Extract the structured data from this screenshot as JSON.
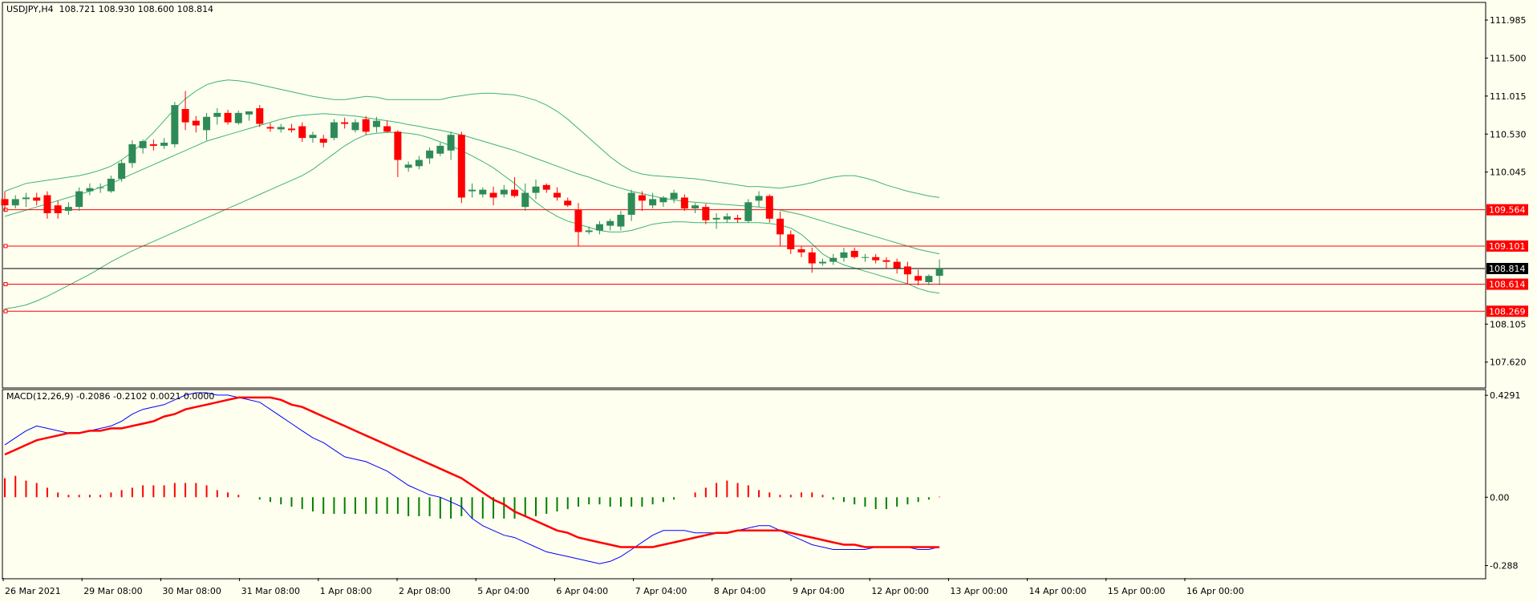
{
  "colors": {
    "background": "#fffff0",
    "frame": "#000000",
    "bull_candle": "#2e8b57",
    "bear_candle": "#ff0000",
    "bollinger": "#3cb371",
    "level_line": "#ff0000",
    "price_line": "#000000",
    "macd_line": "#0000ff",
    "signal_line": "#ff0000",
    "hist_positive": "#ff0000",
    "hist_negative": "#008000"
  },
  "price_panel": {
    "header": "USDJPY,H4  108.721 108.930 108.600 108.814",
    "yaxis_ticks": [
      "111.985",
      "111.500",
      "111.015",
      "110.530",
      "110.045",
      "108.105",
      "107.620"
    ],
    "ylim": [
      107.3,
      112.2
    ],
    "current_price_label": "108.814",
    "horizontal_levels": [
      "109.564",
      "109.101",
      "108.614",
      "108.269"
    ]
  },
  "macd_panel": {
    "header": "MACD(12,26,9) -0.2086 -0.2102 0.0021 0.0000",
    "yaxis_ticks": [
      "0.4291",
      "0.00",
      "-0.288"
    ],
    "ylim": [
      -0.34,
      0.45
    ]
  },
  "xaxis_labels": [
    "26 Mar 2021",
    "29 Mar 08:00",
    "30 Mar 08:00",
    "31 Mar 08:00",
    "1 Apr 08:00",
    "2 Apr 08:00",
    "5 Apr 04:00",
    "6 Apr 04:00",
    "7 Apr 04:00",
    "8 Apr 04:00",
    "9 Apr 04:00",
    "12 Apr 00:00",
    "13 Apr 00:00",
    "14 Apr 00:00",
    "15 Apr 00:00",
    "16 Apr 00:00"
  ],
  "chart_data": {
    "type": "candlestick",
    "symbol": "USDJPY",
    "timeframe": "H4",
    "ohlc": [
      [
        109.7,
        109.8,
        109.55,
        109.62
      ],
      [
        109.62,
        109.75,
        109.58,
        109.7
      ],
      [
        109.7,
        109.78,
        109.6,
        109.72
      ],
      [
        109.72,
        109.78,
        109.62,
        109.68
      ],
      [
        109.75,
        109.8,
        109.45,
        109.52
      ],
      [
        109.62,
        109.68,
        109.45,
        109.52
      ],
      [
        109.55,
        109.66,
        109.5,
        109.6
      ],
      [
        109.6,
        109.85,
        109.55,
        109.8
      ],
      [
        109.8,
        109.9,
        109.75,
        109.84
      ],
      [
        109.84,
        109.9,
        109.78,
        109.85
      ],
      [
        109.8,
        110.0,
        109.78,
        109.96
      ],
      [
        109.96,
        110.2,
        109.92,
        110.16
      ],
      [
        110.16,
        110.45,
        110.1,
        110.4
      ],
      [
        110.35,
        110.46,
        110.28,
        110.44
      ],
      [
        110.4,
        110.46,
        110.32,
        110.38
      ],
      [
        110.38,
        110.48,
        110.34,
        110.42
      ],
      [
        110.4,
        110.94,
        110.36,
        110.9
      ],
      [
        110.85,
        111.08,
        110.58,
        110.68
      ],
      [
        110.7,
        110.76,
        110.55,
        110.64
      ],
      [
        110.58,
        110.8,
        110.45,
        110.75
      ],
      [
        110.75,
        110.86,
        110.65,
        110.8
      ],
      [
        110.8,
        110.84,
        110.65,
        110.68
      ],
      [
        110.67,
        110.83,
        110.65,
        110.8
      ],
      [
        110.78,
        110.82,
        110.7,
        110.82
      ],
      [
        110.86,
        110.9,
        110.62,
        110.66
      ],
      [
        110.62,
        110.67,
        110.56,
        110.6
      ],
      [
        110.59,
        110.66,
        110.55,
        110.62
      ],
      [
        110.6,
        110.66,
        110.55,
        110.58
      ],
      [
        110.63,
        110.68,
        110.43,
        110.48
      ],
      [
        110.48,
        110.56,
        110.42,
        110.52
      ],
      [
        110.47,
        110.52,
        110.36,
        110.42
      ],
      [
        110.48,
        110.72,
        110.45,
        110.68
      ],
      [
        110.68,
        110.74,
        110.6,
        110.66
      ],
      [
        110.58,
        110.72,
        110.55,
        110.68
      ],
      [
        110.72,
        110.76,
        110.52,
        110.56
      ],
      [
        110.62,
        110.75,
        110.55,
        110.7
      ],
      [
        110.63,
        110.7,
        110.55,
        110.56
      ],
      [
        110.56,
        110.58,
        109.98,
        110.2
      ],
      [
        110.1,
        110.18,
        110.05,
        110.14
      ],
      [
        110.12,
        110.25,
        110.08,
        110.2
      ],
      [
        110.22,
        110.36,
        110.15,
        110.32
      ],
      [
        110.28,
        110.42,
        110.25,
        110.38
      ],
      [
        110.32,
        110.56,
        110.2,
        110.52
      ],
      [
        110.52,
        110.56,
        109.65,
        109.72
      ],
      [
        109.8,
        109.9,
        109.72,
        109.82
      ],
      [
        109.76,
        109.85,
        109.72,
        109.82
      ],
      [
        109.78,
        109.86,
        109.62,
        109.72
      ],
      [
        109.76,
        109.88,
        109.72,
        109.82
      ],
      [
        109.82,
        109.98,
        109.72,
        109.74
      ],
      [
        109.6,
        109.9,
        109.55,
        109.78
      ],
      [
        109.78,
        109.95,
        109.7,
        109.86
      ],
      [
        109.88,
        109.9,
        109.78,
        109.82
      ],
      [
        109.78,
        109.85,
        109.68,
        109.72
      ],
      [
        109.68,
        109.72,
        109.6,
        109.62
      ],
      [
        109.56,
        109.65,
        109.1,
        109.28
      ],
      [
        109.28,
        109.35,
        109.25,
        109.3
      ],
      [
        109.3,
        109.42,
        109.25,
        109.38
      ],
      [
        109.36,
        109.45,
        109.3,
        109.42
      ],
      [
        109.35,
        109.55,
        109.3,
        109.5
      ],
      [
        109.5,
        109.82,
        109.42,
        109.78
      ],
      [
        109.75,
        109.8,
        109.55,
        109.68
      ],
      [
        109.62,
        109.78,
        109.58,
        109.7
      ],
      [
        109.66,
        109.74,
        109.6,
        109.72
      ],
      [
        109.7,
        109.82,
        109.65,
        109.78
      ],
      [
        109.72,
        109.76,
        109.55,
        109.58
      ],
      [
        109.58,
        109.65,
        109.52,
        109.62
      ],
      [
        109.6,
        109.64,
        109.38,
        109.43
      ],
      [
        109.44,
        109.52,
        109.32,
        109.46
      ],
      [
        109.44,
        109.52,
        109.4,
        109.48
      ],
      [
        109.46,
        109.5,
        109.4,
        109.44
      ],
      [
        109.42,
        109.7,
        109.4,
        109.66
      ],
      [
        109.68,
        109.8,
        109.6,
        109.74
      ],
      [
        109.74,
        109.76,
        109.4,
        109.45
      ],
      [
        109.45,
        109.54,
        109.1,
        109.25
      ],
      [
        109.25,
        109.3,
        109.0,
        109.06
      ],
      [
        109.06,
        109.1,
        108.96,
        109.02
      ],
      [
        109.02,
        109.08,
        108.76,
        108.88
      ],
      [
        108.88,
        108.94,
        108.85,
        108.9
      ],
      [
        108.9,
        109.0,
        108.86,
        108.95
      ],
      [
        108.95,
        109.08,
        108.9,
        109.02
      ],
      [
        109.04,
        109.08,
        108.94,
        108.96
      ],
      [
        108.96,
        109.0,
        108.9,
        108.96
      ],
      [
        108.96,
        109.0,
        108.88,
        108.92
      ],
      [
        108.92,
        108.96,
        108.82,
        108.9
      ],
      [
        108.9,
        108.94,
        108.75,
        108.82
      ],
      [
        108.84,
        108.9,
        108.62,
        108.74
      ],
      [
        108.72,
        108.8,
        108.6,
        108.66
      ],
      [
        108.64,
        108.74,
        108.6,
        108.72
      ],
      [
        108.721,
        108.93,
        108.6,
        108.814
      ]
    ],
    "bollinger": {
      "upper": [
        109.8,
        109.85,
        109.9,
        109.92,
        109.94,
        109.96,
        109.98,
        110.0,
        110.03,
        110.07,
        110.12,
        110.2,
        110.3,
        110.42,
        110.55,
        110.7,
        110.85,
        110.98,
        111.08,
        111.16,
        111.2,
        111.22,
        111.21,
        111.19,
        111.16,
        111.13,
        111.1,
        111.07,
        111.04,
        111.01,
        110.99,
        110.97,
        110.97,
        110.99,
        111.01,
        111.0,
        110.97,
        110.97,
        110.97,
        110.97,
        110.97,
        110.97,
        111.0,
        111.02,
        111.04,
        111.05,
        111.05,
        111.04,
        111.03,
        111.0,
        110.96,
        110.9,
        110.82,
        110.72,
        110.6,
        110.48,
        110.36,
        110.24,
        110.14,
        110.06,
        110.02,
        110.0,
        109.99,
        109.98,
        109.97,
        109.96,
        109.94,
        109.92,
        109.9,
        109.88,
        109.86,
        109.86,
        109.85,
        109.84,
        109.86,
        109.88,
        109.91,
        109.95,
        109.98,
        110.0,
        110.0,
        109.97,
        109.93,
        109.88,
        109.84,
        109.8,
        109.77,
        109.74,
        109.72
      ],
      "middle": [
        109.48,
        109.52,
        109.56,
        109.6,
        109.64,
        109.68,
        109.72,
        109.76,
        109.8,
        109.85,
        109.9,
        109.96,
        110.02,
        110.08,
        110.14,
        110.2,
        110.26,
        110.32,
        110.38,
        110.44,
        110.48,
        110.52,
        110.56,
        110.6,
        110.64,
        110.68,
        110.72,
        110.75,
        110.77,
        110.78,
        110.79,
        110.78,
        110.77,
        110.76,
        110.74,
        110.72,
        110.7,
        110.68,
        110.65,
        110.63,
        110.6,
        110.58,
        110.55,
        110.52,
        110.48,
        110.44,
        110.4,
        110.36,
        110.32,
        110.27,
        110.22,
        110.17,
        110.12,
        110.07,
        110.02,
        109.98,
        109.93,
        109.88,
        109.84,
        109.8,
        109.77,
        109.74,
        109.71,
        109.69,
        109.67,
        109.66,
        109.65,
        109.64,
        109.63,
        109.62,
        109.61,
        109.6,
        109.58,
        109.56,
        109.53,
        109.5,
        109.46,
        109.42,
        109.38,
        109.34,
        109.3,
        109.26,
        109.22,
        109.18,
        109.14,
        109.1,
        109.06,
        109.03,
        109.0
      ],
      "lower": [
        108.3,
        108.32,
        108.35,
        108.4,
        108.46,
        108.53,
        108.6,
        108.67,
        108.74,
        108.82,
        108.9,
        108.97,
        109.04,
        109.1,
        109.16,
        109.22,
        109.28,
        109.34,
        109.4,
        109.46,
        109.52,
        109.58,
        109.64,
        109.7,
        109.76,
        109.82,
        109.88,
        109.94,
        110.0,
        110.08,
        110.18,
        110.28,
        110.38,
        110.46,
        110.52,
        110.54,
        110.55,
        110.55,
        110.54,
        110.52,
        110.48,
        110.43,
        110.38,
        110.32,
        110.25,
        110.18,
        110.1,
        110.0,
        109.9,
        109.78,
        109.66,
        109.56,
        109.48,
        109.42,
        109.38,
        109.34,
        109.3,
        109.28,
        109.28,
        109.3,
        109.34,
        109.38,
        109.4,
        109.41,
        109.41,
        109.4,
        109.4,
        109.4,
        109.4,
        109.4,
        109.4,
        109.4,
        109.39,
        109.37,
        109.33,
        109.25,
        109.13,
        109.0,
        108.92,
        108.86,
        108.82,
        108.78,
        108.74,
        108.7,
        108.66,
        108.62,
        108.56,
        108.52,
        108.5
      ]
    },
    "current_price": 108.814,
    "horizontal_levels": [
      109.564,
      109.101,
      108.614,
      108.269
    ],
    "macd": {
      "params": "12,26,9",
      "macd_line": [
        0.22,
        0.25,
        0.28,
        0.3,
        0.29,
        0.28,
        0.27,
        0.27,
        0.28,
        0.29,
        0.3,
        0.32,
        0.35,
        0.37,
        0.38,
        0.39,
        0.41,
        0.43,
        0.44,
        0.44,
        0.43,
        0.43,
        0.42,
        0.41,
        0.4,
        0.37,
        0.34,
        0.31,
        0.28,
        0.25,
        0.23,
        0.2,
        0.17,
        0.16,
        0.15,
        0.13,
        0.11,
        0.08,
        0.05,
        0.03,
        0.01,
        0.0,
        -0.02,
        -0.04,
        -0.09,
        -0.12,
        -0.14,
        -0.16,
        -0.17,
        -0.19,
        -0.21,
        -0.23,
        -0.24,
        -0.25,
        -0.26,
        -0.27,
        -0.28,
        -0.27,
        -0.25,
        -0.22,
        -0.19,
        -0.16,
        -0.14,
        -0.14,
        -0.14,
        -0.15,
        -0.15,
        -0.15,
        -0.15,
        -0.14,
        -0.13,
        -0.12,
        -0.12,
        -0.14,
        -0.16,
        -0.18,
        -0.2,
        -0.21,
        -0.22,
        -0.22,
        -0.22,
        -0.22,
        -0.21,
        -0.21,
        -0.21,
        -0.21,
        -0.22,
        -0.22,
        -0.2086
      ],
      "signal_line": [
        0.18,
        0.2,
        0.22,
        0.24,
        0.25,
        0.26,
        0.27,
        0.27,
        0.28,
        0.28,
        0.29,
        0.29,
        0.3,
        0.31,
        0.32,
        0.34,
        0.35,
        0.37,
        0.38,
        0.39,
        0.4,
        0.41,
        0.42,
        0.42,
        0.42,
        0.42,
        0.41,
        0.39,
        0.38,
        0.36,
        0.34,
        0.32,
        0.3,
        0.28,
        0.26,
        0.24,
        0.22,
        0.2,
        0.18,
        0.16,
        0.14,
        0.12,
        0.1,
        0.08,
        0.05,
        0.02,
        -0.01,
        -0.03,
        -0.06,
        -0.08,
        -0.1,
        -0.12,
        -0.14,
        -0.15,
        -0.17,
        -0.18,
        -0.19,
        -0.2,
        -0.21,
        -0.21,
        -0.21,
        -0.21,
        -0.2,
        -0.19,
        -0.18,
        -0.17,
        -0.16,
        -0.15,
        -0.15,
        -0.14,
        -0.14,
        -0.14,
        -0.14,
        -0.14,
        -0.15,
        -0.16,
        -0.17,
        -0.18,
        -0.19,
        -0.2,
        -0.2,
        -0.21,
        -0.21,
        -0.21,
        -0.21,
        -0.21,
        -0.21,
        -0.21,
        -0.2102
      ],
      "histogram": [
        0.08,
        0.09,
        0.07,
        0.06,
        0.04,
        0.02,
        0.01,
        0.01,
        0.01,
        0.01,
        0.02,
        0.03,
        0.04,
        0.05,
        0.05,
        0.05,
        0.06,
        0.06,
        0.06,
        0.05,
        0.03,
        0.02,
        0.01,
        0.0,
        -0.01,
        -0.02,
        -0.03,
        -0.04,
        -0.05,
        -0.06,
        -0.07,
        -0.07,
        -0.07,
        -0.07,
        -0.07,
        -0.07,
        -0.07,
        -0.07,
        -0.08,
        -0.08,
        -0.08,
        -0.09,
        -0.09,
        -0.08,
        -0.09,
        -0.09,
        -0.09,
        -0.09,
        -0.09,
        -0.08,
        -0.08,
        -0.07,
        -0.06,
        -0.05,
        -0.04,
        -0.03,
        -0.03,
        -0.04,
        -0.04,
        -0.04,
        -0.04,
        -0.03,
        -0.02,
        -0.01,
        0.0,
        0.02,
        0.04,
        0.06,
        0.07,
        0.06,
        0.05,
        0.03,
        0.02,
        0.01,
        0.01,
        0.02,
        0.02,
        0.01,
        -0.01,
        -0.02,
        -0.03,
        -0.04,
        -0.05,
        -0.05,
        -0.04,
        -0.03,
        -0.02,
        -0.01,
        0.0021
      ]
    }
  }
}
